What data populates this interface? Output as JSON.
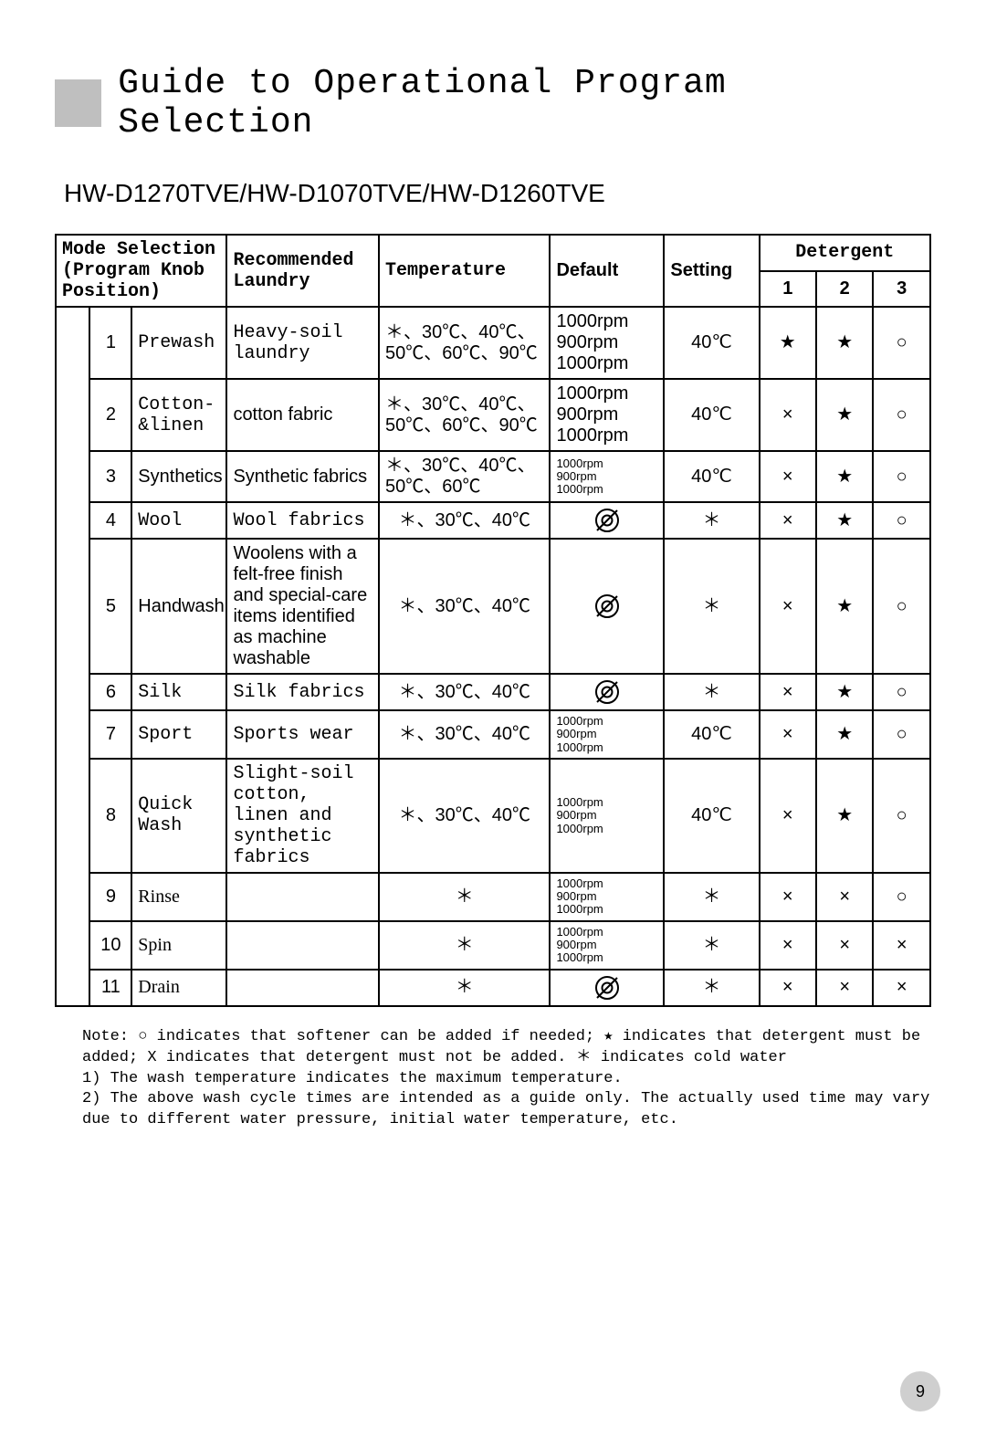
{
  "title": "Guide to Operational Program Selection",
  "models": "HW-D1270TVE/HW-D1070TVE/HW-D1260TVE",
  "headers": {
    "mode": "Mode Selection (Program Knob Position)",
    "laundry": "Recommended Laundry",
    "temp": "Temperature",
    "default": "Default",
    "setting": "Setting",
    "detergent": "Detergent",
    "d1": "1",
    "d2": "2",
    "d3": "3"
  },
  "rows": [
    {
      "n": "1",
      "mode": "Prewash",
      "laundry": "Heavy-soil laundry",
      "temp": "＊、30℃、40℃、50℃、60℃、90℃",
      "default": "1000rpm\n900rpm\n1000rpm",
      "setting": "40℃",
      "d1": "★",
      "d2": "★",
      "d3": "○"
    },
    {
      "n": "2",
      "mode": "Cotton-&linen",
      "laundry": "cotton fabric",
      "temp": "＊、30℃、40℃、50℃、60℃、90℃",
      "default": "1000rpm\n900rpm\n1000rpm",
      "setting": "40℃",
      "d1": "×",
      "d2": "★",
      "d3": "○"
    },
    {
      "n": "3",
      "mode": "Synthetics",
      "laundry": "Synthetic fabrics",
      "temp": "＊、30℃、40℃、50℃、60℃",
      "default": "1000rpm\n900rpm\n1000rpm",
      "setting": "40℃",
      "d1": "×",
      "d2": "★",
      "d3": "○"
    },
    {
      "n": "4",
      "mode": "Wool",
      "laundry": "Wool fabrics",
      "temp": "＊、30℃、40℃",
      "default": "NOSPIN",
      "setting": "＊",
      "d1": "×",
      "d2": "★",
      "d3": "○"
    },
    {
      "n": "5",
      "mode": "Handwash",
      "laundry": "Woolens with a felt-free finish and special-care items identified as machine washable",
      "temp": "＊、30℃、40℃",
      "default": "NOSPIN",
      "setting": "＊",
      "d1": "×",
      "d2": "★",
      "d3": "○"
    },
    {
      "n": "6",
      "mode": "Silk",
      "laundry": "Silk fabrics",
      "temp": "＊、30℃、40℃",
      "default": "NOSPIN",
      "setting": "＊",
      "d1": "×",
      "d2": "★",
      "d3": "○"
    },
    {
      "n": "7",
      "mode": "Sport",
      "laundry": "Sports wear",
      "temp": "＊、30℃、40℃",
      "default": "1000rpm\n900rpm\n1000rpm",
      "setting": "40℃",
      "d1": "×",
      "d2": "★",
      "d3": "○"
    },
    {
      "n": "8",
      "mode": "Quick Wash",
      "laundry": "Slight-soil cotton, linen and synthetic fabrics",
      "temp": "＊、30℃、40℃",
      "default": "1000rpm\n900rpm\n1000rpm",
      "setting": "40℃",
      "d1": "×",
      "d2": "★",
      "d3": "○"
    },
    {
      "n": "9",
      "mode": "Rinse",
      "laundry": "",
      "temp": "＊",
      "default": "1000rpm\n900rpm\n1000rpm",
      "setting": "＊",
      "d1": "×",
      "d2": "×",
      "d3": "○"
    },
    {
      "n": "10",
      "mode": "Spin",
      "laundry": "",
      "temp": "＊",
      "default": "1000rpm\n900rpm\n1000rpm",
      "setting": "＊",
      "d1": "×",
      "d2": "×",
      "d3": "×"
    },
    {
      "n": "11",
      "mode": "Drain",
      "laundry": "",
      "temp": "＊",
      "default": "NOSPIN",
      "setting": "＊",
      "d1": "×",
      "d2": "×",
      "d3": "×"
    }
  ],
  "notes": {
    "line1": "Note: ○ indicates that softener can be added if needed; ★ indicates that detergent must be added; X indicates that detergent must not be added. ＊ indicates cold water",
    "line2": "1) The wash temperature indicates the maximum temperature.",
    "line3": "2) The above wash cycle times are intended as a guide only. The actually used time may vary due to different water pressure, initial water temperature, etc."
  },
  "page_number": "9",
  "style": {
    "row_fonts": {
      "1": {
        "mode": "mono",
        "laundry": "mono"
      },
      "2": {
        "mode": "mono",
        "laundry": "arial"
      },
      "3": {
        "mode": "arial",
        "laundry": "arial"
      },
      "4": {
        "mode": "mono",
        "laundry": "mono"
      },
      "5": {
        "mode": "arial",
        "laundry": "xsmall arial"
      },
      "6": {
        "mode": "mono",
        "laundry": "mono"
      },
      "7": {
        "mode": "mono",
        "laundry": "mono"
      },
      "8": {
        "mode": "mono",
        "laundry": "small mono"
      },
      "9": {
        "mode": "serif",
        "laundry": ""
      },
      "10": {
        "mode": "serif",
        "laundry": ""
      },
      "11": {
        "mode": "serif",
        "laundry": ""
      }
    },
    "default_small_rows": [
      "3",
      "7",
      "8",
      "9",
      "10"
    ],
    "colors": {
      "title_block": "#bfbfbf",
      "page_circle": "#cfcfcf",
      "border": "#000000",
      "text": "#000000",
      "background": "#ffffff"
    }
  }
}
